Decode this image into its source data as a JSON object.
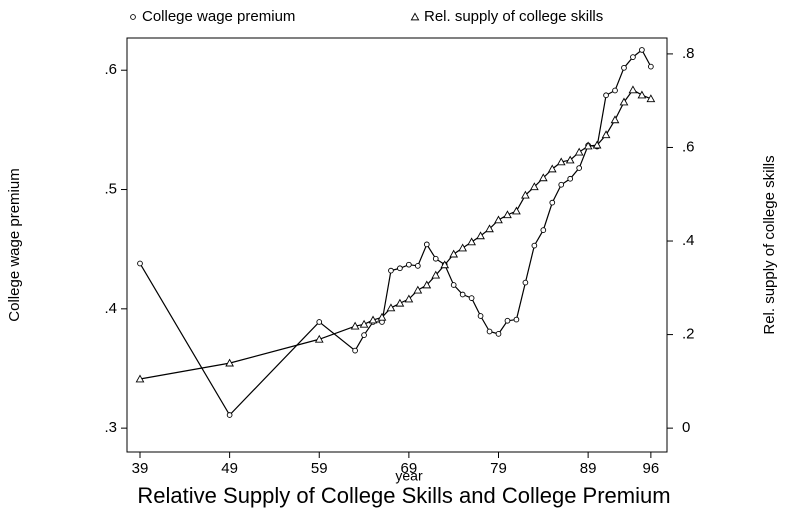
{
  "chart_data": {
    "type": "line",
    "title": "Relative Supply of College Skills and College Premium",
    "x_label": "year",
    "y_label": "College wage premium",
    "y2_label": "Rel. supply of college skills",
    "x": [
      39,
      49,
      59,
      63,
      64,
      65,
      66,
      67,
      68,
      69,
      70,
      71,
      72,
      73,
      74,
      75,
      76,
      77,
      78,
      79,
      80,
      81,
      82,
      83,
      84,
      85,
      86,
      87,
      88,
      89,
      90,
      91,
      92,
      93,
      94,
      95,
      96
    ],
    "series": [
      {
        "name": "College wage premium",
        "color": "#000000",
        "marker": "circle",
        "values": [
          0.438,
          0.311,
          0.389,
          0.365,
          0.378,
          0.389,
          0.389,
          0.432,
          0.434,
          0.437,
          0.436,
          0.454,
          0.442,
          0.437,
          0.42,
          0.412,
          0.409,
          0.394,
          0.381,
          0.379,
          0.39,
          0.391,
          0.422,
          0.453,
          0.466,
          0.489,
          0.504,
          0.509,
          0.518,
          0.537,
          0.536,
          0.579,
          0.583,
          0.602,
          0.611,
          0.617,
          0.603
        ]
      },
      {
        "name": "Rel. supply of college skills",
        "color": "#000000",
        "marker": "triangle",
        "axis": "y2",
        "values": [
          0.105,
          0.139,
          0.19,
          0.218,
          0.222,
          0.231,
          0.237,
          0.257,
          0.267,
          0.276,
          0.295,
          0.306,
          0.327,
          0.349,
          0.372,
          0.385,
          0.398,
          0.411,
          0.426,
          0.445,
          0.456,
          0.464,
          0.498,
          0.516,
          0.535,
          0.554,
          0.569,
          0.573,
          0.59,
          0.603,
          0.605,
          0.627,
          0.659,
          0.697,
          0.723,
          0.712,
          0.704
        ]
      }
    ],
    "xlim": [
      37.55,
      97.8
    ],
    "xticks": [
      39,
      49,
      59,
      69,
      79,
      89,
      96
    ],
    "ylim": [
      0.28,
      0.627
    ],
    "yticks": [
      {
        "value": 0.3,
        "label": ".3"
      },
      {
        "value": 0.4,
        "label": ".4"
      },
      {
        "value": 0.5,
        "label": ".5"
      },
      {
        "value": 0.6,
        "label": ".6"
      }
    ],
    "y2lim": [
      -0.051,
      0.834
    ],
    "y2ticks": [
      0,
      {
        "value": 0.2,
        "label": ".2"
      },
      {
        "value": 0.4,
        "label": ".4"
      },
      {
        "value": 0.6,
        "label": ".6"
      },
      {
        "value": 0.8,
        "label": ".8"
      }
    ],
    "grid": false,
    "legend": "top"
  }
}
